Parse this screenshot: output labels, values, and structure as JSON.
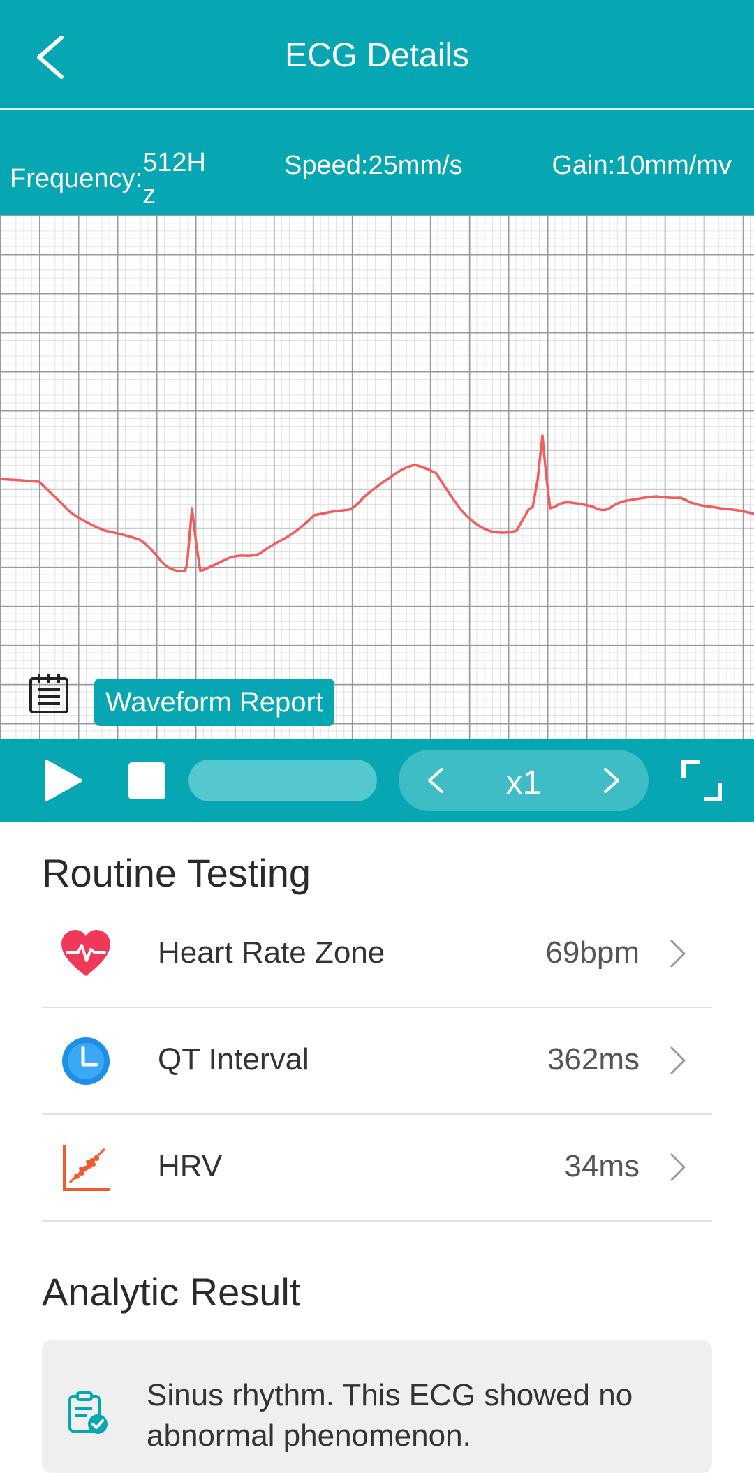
{
  "header": {
    "title": "ECG Details"
  },
  "info": {
    "frequency_label": "Frequency:",
    "frequency_value": "512Hz",
    "speed": "Speed:25mm/s",
    "gain": "Gain:10mm/mv"
  },
  "chart": {
    "report_label": "Waveform Report"
  },
  "controls": {
    "playback_rate": "x1",
    "progress": 0
  },
  "routine": {
    "title": "Routine Testing",
    "items": [
      {
        "label": "Heart Rate Zone",
        "value": "69bpm",
        "icon": "heart-rate-icon"
      },
      {
        "label": "QT Interval",
        "value": "362ms",
        "icon": "clock-icon"
      },
      {
        "label": "HRV",
        "value": "34ms",
        "icon": "hrv-chart-icon"
      }
    ]
  },
  "analytic": {
    "title": "Analytic Result",
    "text": "Sinus rhythm. This ECG showed no abnormal phenomenon."
  },
  "colors": {
    "accent": "#06A7B3",
    "waveform": "#F25C5C",
    "heart": "#F0395A",
    "clock": "#1E8FE6",
    "hrv": "#F05A2C"
  }
}
